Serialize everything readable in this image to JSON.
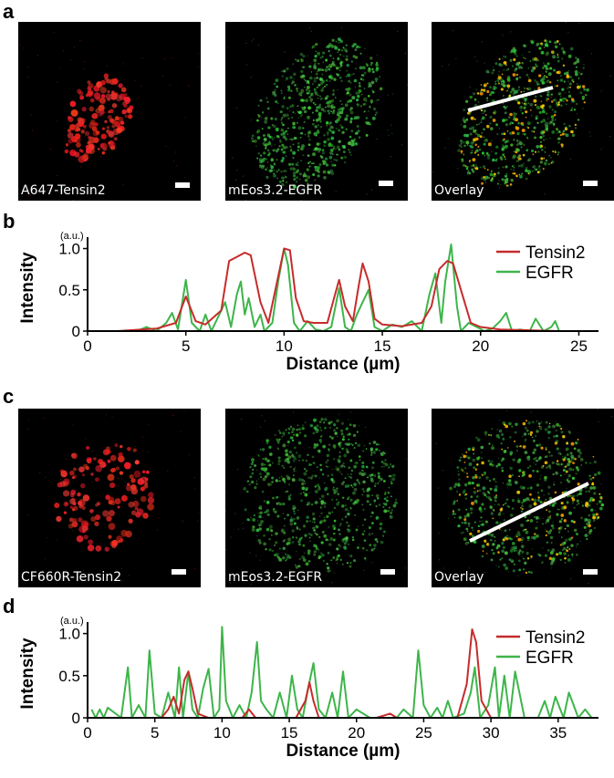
{
  "panels": {
    "a": {
      "letter": "a",
      "images": [
        {
          "label": "A647-Tensin2",
          "channel": "red"
        },
        {
          "label": "mEos3.2-EGFR",
          "channel": "green"
        },
        {
          "label": "Overlay",
          "channel": "overlay"
        }
      ]
    },
    "b": {
      "letter": "b"
    },
    "c": {
      "letter": "c",
      "images": [
        {
          "label": "CF660R-Tensin2",
          "channel": "red"
        },
        {
          "label": "mEos3.2-EGFR",
          "channel": "green"
        },
        {
          "label": "Overlay",
          "channel": "overlay"
        }
      ]
    },
    "d": {
      "letter": "d"
    }
  },
  "colors": {
    "tensin2": "#c62b2b",
    "egfr": "#3db54a"
  },
  "chart_data": [
    {
      "type": "line",
      "panel": "b",
      "xlabel": "Distance (µm)",
      "ylabel": "Intensity",
      "unit_label": "(a.u.)",
      "xlim": [
        0,
        26
      ],
      "ylim": [
        0,
        1.05
      ],
      "xticks": [
        0,
        5,
        10,
        15,
        20,
        25
      ],
      "yticks": [
        0,
        0.5,
        1.0
      ],
      "ytick_labels": [
        "0",
        "0.5",
        "1.0"
      ],
      "legend_position": "top-right",
      "series": [
        {
          "name": "Tensin2",
          "color": "#c62b2b",
          "x": [
            1.5,
            3.5,
            4.5,
            5.0,
            5.5,
            6.0,
            6.8,
            7.2,
            7.6,
            8.0,
            8.3,
            8.8,
            9.2,
            9.6,
            10.0,
            10.3,
            10.6,
            11.0,
            11.5,
            12.2,
            12.6,
            12.8,
            13.1,
            13.5,
            13.8,
            14.0,
            14.3,
            14.6,
            15.0,
            16.0,
            17.0,
            17.5,
            17.9,
            18.3,
            18.6,
            19.0,
            19.5,
            20.0,
            21.0,
            24.0
          ],
          "y": [
            0.0,
            0.03,
            0.1,
            0.42,
            0.12,
            0.08,
            0.25,
            0.85,
            0.9,
            0.95,
            0.92,
            0.35,
            0.1,
            0.55,
            1.0,
            0.98,
            0.4,
            0.12,
            0.1,
            0.1,
            0.45,
            0.62,
            0.3,
            0.12,
            0.55,
            0.82,
            0.6,
            0.15,
            0.08,
            0.06,
            0.1,
            0.3,
            0.75,
            0.85,
            0.82,
            0.5,
            0.1,
            0.05,
            0.02,
            0.0
          ]
        },
        {
          "name": "EGFR",
          "color": "#3db54a",
          "x": [
            2.5,
            3.0,
            3.5,
            4.0,
            4.3,
            4.6,
            5.0,
            5.3,
            5.7,
            6.0,
            6.3,
            6.8,
            7.0,
            7.3,
            7.6,
            7.8,
            8.0,
            8.2,
            8.5,
            8.8,
            9.0,
            9.4,
            9.7,
            10.0,
            10.2,
            10.5,
            10.8,
            11.2,
            11.6,
            12.0,
            12.4,
            12.8,
            13.1,
            13.4,
            13.7,
            14.0,
            14.3,
            14.6,
            15.0,
            15.5,
            16.0,
            16.5,
            17.0,
            17.4,
            17.7,
            18.0,
            18.2,
            18.5,
            18.8,
            19.0,
            19.4,
            19.8,
            20.2,
            20.6,
            21.0,
            21.3,
            21.6,
            22.0,
            22.5,
            22.8,
            23.2,
            23.6,
            23.8,
            24.0
          ],
          "y": [
            0.0,
            0.05,
            0.0,
            0.1,
            0.22,
            0.02,
            0.62,
            0.1,
            0.0,
            0.2,
            0.0,
            0.25,
            0.35,
            0.05,
            0.45,
            0.6,
            0.2,
            0.4,
            0.05,
            0.2,
            0.0,
            0.1,
            0.6,
            1.0,
            0.8,
            0.1,
            0.0,
            0.12,
            0.02,
            0.0,
            0.05,
            0.52,
            0.05,
            0.0,
            0.2,
            0.35,
            0.5,
            0.05,
            0.0,
            0.08,
            0.05,
            0.12,
            0.0,
            0.45,
            0.7,
            0.1,
            0.6,
            1.05,
            0.3,
            0.0,
            0.1,
            0.05,
            0.0,
            0.03,
            0.12,
            0.22,
            0.0,
            0.02,
            0.0,
            0.15,
            0.0,
            0.05,
            0.12,
            0.0
          ]
        }
      ]
    },
    {
      "type": "line",
      "panel": "d",
      "xlabel": "Distance (µm)",
      "ylabel": "Intensity",
      "unit_label": "(a.u.)",
      "xlim": [
        0,
        38
      ],
      "ylim": [
        0,
        1.05
      ],
      "xticks": [
        0,
        5,
        10,
        15,
        20,
        25,
        30,
        35
      ],
      "yticks": [
        0,
        0.5,
        1.0
      ],
      "ytick_labels": [
        "0",
        "0.5",
        "1.0"
      ],
      "legend_position": "top-right",
      "series": [
        {
          "name": "Tensin2",
          "color": "#c62b2b",
          "x": [
            0,
            5.5,
            6.0,
            6.4,
            6.8,
            7.2,
            7.5,
            7.8,
            8.2,
            9.0,
            11.5,
            12.0,
            12.5,
            15.5,
            16.2,
            16.5,
            16.8,
            17.2,
            21.5,
            22.5,
            23.0,
            27.5,
            28.2,
            28.6,
            28.9,
            29.3,
            30.0,
            38
          ],
          "y": [
            0.0,
            0.0,
            0.1,
            0.25,
            0.05,
            0.45,
            0.55,
            0.35,
            0.05,
            0.0,
            0.0,
            0.1,
            0.0,
            0.0,
            0.2,
            0.42,
            0.2,
            0.0,
            0.0,
            0.05,
            0.0,
            0.0,
            0.4,
            1.05,
            0.9,
            0.2,
            0.0,
            0.0
          ]
        },
        {
          "name": "EGFR",
          "color": "#3db54a",
          "x": [
            0.3,
            0.6,
            0.9,
            1.2,
            1.5,
            2.5,
            3.0,
            3.3,
            3.8,
            4.3,
            4.6,
            5.0,
            5.5,
            6.0,
            6.5,
            6.8,
            7.1,
            7.5,
            7.8,
            8.2,
            8.6,
            9.0,
            9.4,
            9.8,
            10.0,
            10.3,
            10.8,
            11.3,
            11.8,
            12.2,
            12.6,
            12.9,
            13.3,
            13.8,
            14.3,
            14.8,
            15.2,
            15.6,
            16.0,
            16.4,
            16.8,
            17.2,
            17.7,
            18.2,
            18.6,
            19.0,
            19.4,
            20.0,
            21.0,
            22.0,
            23.0,
            23.5,
            24.2,
            24.6,
            25.0,
            25.5,
            26.0,
            26.4,
            26.8,
            27.2,
            28.0,
            28.5,
            28.8,
            29.2,
            29.8,
            30.3,
            30.6,
            31.0,
            31.4,
            31.8,
            32.5,
            33.5,
            34.0,
            34.4,
            34.8,
            35.4,
            35.8,
            36.5,
            37.0,
            37.5
          ],
          "y": [
            0.1,
            0.0,
            0.1,
            0.0,
            0.12,
            0.0,
            0.6,
            0.0,
            0.15,
            0.0,
            0.8,
            0.05,
            0.0,
            0.3,
            0.0,
            0.6,
            0.0,
            0.55,
            0.1,
            0.0,
            0.35,
            0.58,
            0.0,
            0.1,
            1.08,
            0.2,
            0.0,
            0.15,
            0.0,
            0.3,
            0.9,
            0.2,
            0.1,
            0.0,
            0.3,
            0.0,
            0.5,
            0.1,
            0.0,
            0.35,
            0.65,
            0.1,
            0.0,
            0.3,
            0.0,
            0.55,
            0.0,
            0.1,
            0.0,
            0.0,
            0.0,
            0.1,
            0.0,
            0.8,
            0.15,
            0.0,
            0.12,
            0.0,
            0.2,
            0.0,
            0.05,
            0.3,
            0.6,
            0.0,
            0.15,
            0.6,
            0.0,
            0.5,
            0.0,
            0.55,
            0.0,
            0.0,
            0.2,
            0.0,
            0.25,
            0.0,
            0.3,
            0.0,
            0.1,
            0.0
          ]
        }
      ]
    }
  ]
}
